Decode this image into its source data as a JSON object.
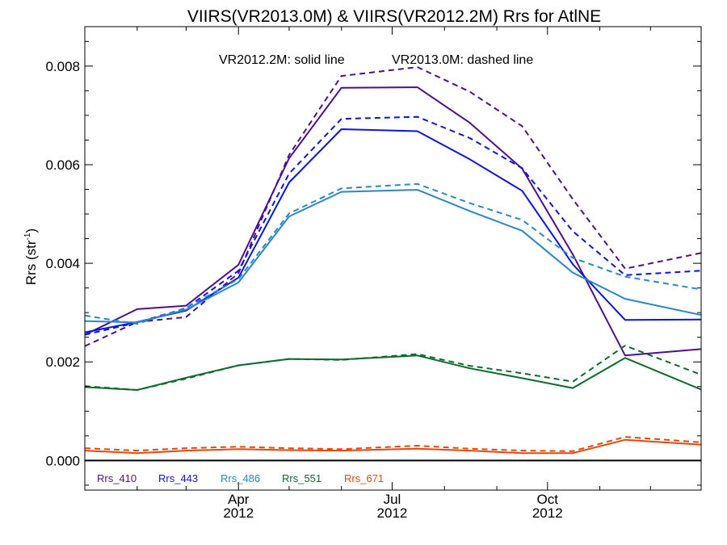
{
  "chart_data": {
    "type": "line",
    "title": "VIIRS(VR2013.0M) & VIIRS(VR2012.2M)  Rrs for AtlNE",
    "ylabel": "Rrs (str",
    "ylabel_sup": "-1",
    "ylabel_close": ")",
    "xlabel": "",
    "annotation_solid": "VR2012.2M: solid line",
    "annotation_dashed": "VR2013.0M: dashed line",
    "xlim": [
      "2012-01-01",
      "2012-12-31"
    ],
    "ylim": [
      -0.0006,
      0.0088
    ],
    "x_ticks": [
      {
        "date": "2012-04-01",
        "label1": "Apr",
        "label2": "2012"
      },
      {
        "date": "2012-07-01",
        "label1": "Jul",
        "label2": "2012"
      },
      {
        "date": "2012-10-01",
        "label1": "Oct",
        "label2": "2012"
      }
    ],
    "y_ticks": [
      {
        "value": 0.0,
        "label": "0.000"
      },
      {
        "value": 0.002,
        "label": "0.002"
      },
      {
        "value": 0.004,
        "label": "0.004"
      },
      {
        "value": 0.006,
        "label": "0.006"
      },
      {
        "value": 0.008,
        "label": "0.008"
      }
    ],
    "zero_line": true,
    "grid": false,
    "legend_placement": "bottom-left",
    "x": [
      "2012-01-01",
      "2012-02-01",
      "2012-03-01",
      "2012-04-01",
      "2012-05-01",
      "2012-06-01",
      "2012-07-16",
      "2012-08-16",
      "2012-09-16",
      "2012-10-16",
      "2012-11-16",
      "2012-12-31"
    ],
    "series": [
      {
        "name": "Rrs_410",
        "color": "#4b0f8f",
        "solid": [
          0.00255,
          0.00307,
          0.00314,
          0.00397,
          0.00613,
          0.00756,
          0.00757,
          0.00685,
          0.00592,
          0.00418,
          0.00213,
          0.00226
        ],
        "dashed": [
          0.00232,
          0.00281,
          0.00291,
          0.0038,
          0.0062,
          0.0078,
          0.00798,
          0.00748,
          0.00678,
          0.0053,
          0.00389,
          0.00421
        ]
      },
      {
        "name": "Rrs_443",
        "color": "#0a14e6",
        "solid": [
          0.0026,
          0.00281,
          0.00304,
          0.00371,
          0.00564,
          0.00672,
          0.00668,
          0.00611,
          0.00547,
          0.00398,
          0.00285,
          0.00286
        ],
        "dashed": [
          0.00255,
          0.0028,
          0.00309,
          0.00385,
          0.00582,
          0.00693,
          0.00697,
          0.00654,
          0.00593,
          0.00465,
          0.00376,
          0.00385
        ]
      },
      {
        "name": "Rrs_486",
        "color": "#2a87cc",
        "solid": [
          0.00283,
          0.0028,
          0.00306,
          0.00361,
          0.00495,
          0.00545,
          0.00549,
          0.00506,
          0.00466,
          0.00381,
          0.00328,
          0.00295
        ],
        "dashed": [
          0.00294,
          0.00277,
          0.0031,
          0.00368,
          0.00501,
          0.00552,
          0.00561,
          0.00522,
          0.00488,
          0.00411,
          0.00373,
          0.00347
        ]
      },
      {
        "name": "Rrs_551",
        "color": "#0f6b2d",
        "solid": [
          0.00149,
          0.00143,
          0.00168,
          0.00193,
          0.00206,
          0.00205,
          0.00213,
          0.00187,
          0.00167,
          0.00147,
          0.00208,
          0.00144
        ],
        "dashed": [
          0.00151,
          0.00143,
          0.00166,
          0.00193,
          0.00206,
          0.00204,
          0.00216,
          0.00192,
          0.00177,
          0.0016,
          0.00233,
          0.00174
        ]
      },
      {
        "name": "Rrs_671",
        "color": "#e3480c",
        "solid": [
          0.0002,
          0.00015,
          0.0002,
          0.00023,
          0.00021,
          0.0002,
          0.00024,
          0.0002,
          0.00015,
          0.00015,
          0.00042,
          0.00032
        ],
        "dashed": [
          0.00025,
          0.0002,
          0.00025,
          0.00028,
          0.00025,
          0.00023,
          0.0003,
          0.00024,
          0.0002,
          0.00019,
          0.00048,
          0.00037
        ]
      }
    ]
  }
}
